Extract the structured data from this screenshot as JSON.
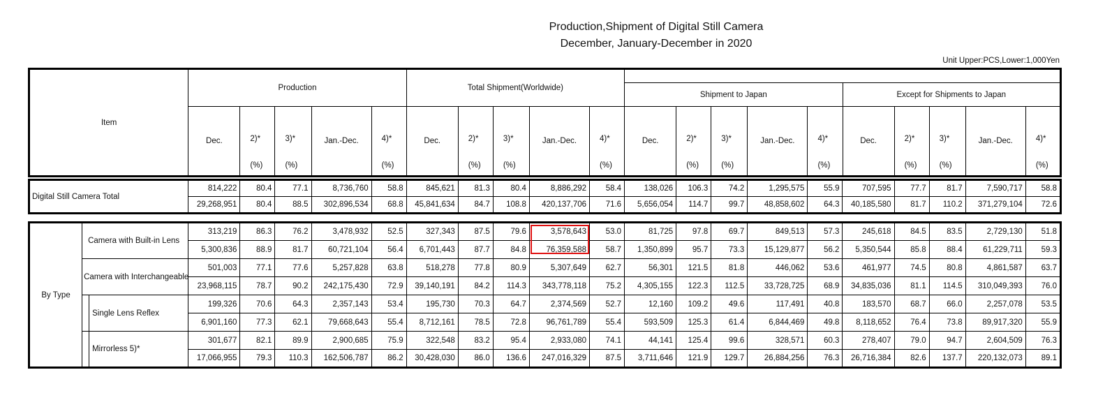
{
  "title": {
    "line1": "Production,Shipment of Digital Still Camera",
    "line2": "December, January-December in 2020"
  },
  "unit": "Unit Upper:PCS,Lower:1,000Yen",
  "header": {
    "item": "Item",
    "groups": [
      "Production",
      "Total Shipment(Worldwide)",
      "Shipment to Japan",
      "Except for Shipments to Japan"
    ],
    "cols": [
      "Dec.",
      "2)*",
      "3)*",
      "Jan.-Dec.",
      "4)*"
    ],
    "pct": "(%)"
  },
  "total": {
    "label": "Digital Still Camera Total",
    "rows": [
      [
        "814,222",
        "80.4",
        "77.1",
        "8,736,760",
        "58.8",
        "845,621",
        "81.3",
        "80.4",
        "8,886,292",
        "58.4",
        "138,026",
        "106.3",
        "74.2",
        "1,295,575",
        "55.9",
        "707,595",
        "77.7",
        "81.7",
        "7,590,717",
        "58.8"
      ],
      [
        "29,268,951",
        "80.4",
        "88.5",
        "302,896,534",
        "68.8",
        "45,841,634",
        "84.7",
        "108.8",
        "420,137,706",
        "71.6",
        "5,656,054",
        "114.7",
        "99.7",
        "48,858,602",
        "64.3",
        "40,185,580",
        "81.7",
        "110.2",
        "371,279,104",
        "72.6"
      ]
    ]
  },
  "by_type": {
    "label": "By Type",
    "groups": [
      {
        "label": "Camera with Built-in Lens",
        "rows": [
          [
            "313,219",
            "86.3",
            "76.2",
            "3,478,932",
            "52.5",
            "327,343",
            "87.5",
            "79.6",
            "3,578,643",
            "53.0",
            "81,725",
            "97.8",
            "69.7",
            "849,513",
            "57.3",
            "245,618",
            "84.5",
            "83.5",
            "2,729,130",
            "51.8"
          ],
          [
            "5,300,836",
            "88.9",
            "81.7",
            "60,721,104",
            "56.4",
            "6,701,443",
            "87.7",
            "84.8",
            "76,359,588",
            "58.7",
            "1,350,899",
            "95.7",
            "73.3",
            "15,129,877",
            "56.2",
            "5,350,544",
            "85.8",
            "88.4",
            "61,229,711",
            "59.3"
          ]
        ]
      },
      {
        "label": "Camera with Interchangeable Lens",
        "rows": [
          [
            "501,003",
            "77.1",
            "77.6",
            "5,257,828",
            "63.8",
            "518,278",
            "77.8",
            "80.9",
            "5,307,649",
            "62.7",
            "56,301",
            "121.5",
            "81.8",
            "446,062",
            "53.6",
            "461,977",
            "74.5",
            "80.8",
            "4,861,587",
            "63.7"
          ],
          [
            "23,968,115",
            "78.7",
            "90.2",
            "242,175,430",
            "72.9",
            "39,140,191",
            "84.2",
            "114.3",
            "343,778,118",
            "75.2",
            "4,305,155",
            "122.3",
            "112.5",
            "33,728,725",
            "68.9",
            "34,835,036",
            "81.1",
            "114.5",
            "310,049,393",
            "76.0"
          ]
        ]
      },
      {
        "label": "Single Lens Reflex",
        "rows": [
          [
            "199,326",
            "70.6",
            "64.3",
            "2,357,143",
            "53.4",
            "195,730",
            "70.3",
            "64.7",
            "2,374,569",
            "52.7",
            "12,160",
            "109.2",
            "49.6",
            "117,491",
            "40.8",
            "183,570",
            "68.7",
            "66.0",
            "2,257,078",
            "53.5"
          ],
          [
            "6,901,160",
            "77.3",
            "62.1",
            "79,668,643",
            "55.4",
            "8,712,161",
            "78.5",
            "72.8",
            "96,761,789",
            "55.4",
            "593,509",
            "125.3",
            "61.4",
            "6,844,469",
            "49.8",
            "8,118,652",
            "76.4",
            "73.8",
            "89,917,320",
            "55.9"
          ]
        ]
      },
      {
        "label": "Mirrorless 5)*",
        "rows": [
          [
            "301,677",
            "82.1",
            "89.9",
            "2,900,685",
            "75.9",
            "322,548",
            "83.2",
            "95.4",
            "2,933,080",
            "74.1",
            "44,141",
            "125.4",
            "99.6",
            "328,571",
            "60.3",
            "278,407",
            "79.0",
            "94.7",
            "2,604,509",
            "76.3"
          ],
          [
            "17,066,955",
            "79.3",
            "110.3",
            "162,506,787",
            "86.2",
            "30,428,030",
            "86.0",
            "136.6",
            "247,016,329",
            "87.5",
            "3,711,646",
            "121.9",
            "129.7",
            "26,884,256",
            "76.3",
            "26,716,384",
            "82.6",
            "137.7",
            "220,132,073",
            "89.1"
          ]
        ]
      }
    ]
  },
  "highlight_color": "#e01010"
}
